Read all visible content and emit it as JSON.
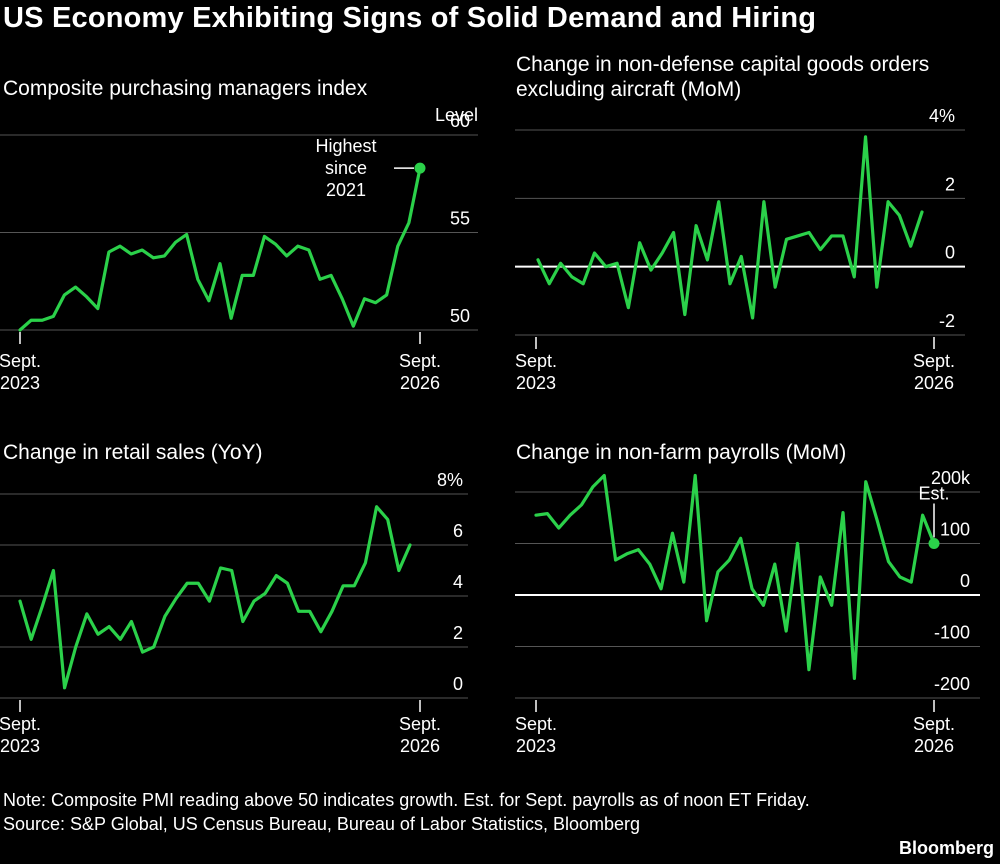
{
  "title": "US Economy Exhibiting Signs of Solid Demand and Hiring",
  "accent_color": "#2bd14a",
  "footer": {
    "note": "Note: Composite PMI reading above 50 indicates growth. Est. for Sept. payrolls as of noon ET Friday.",
    "source": "Source: S&P Global, US Census Bureau, Bureau of Labor Statistics, Bloomberg",
    "brand": "Bloomberg"
  },
  "chart_data": [
    {
      "type": "line",
      "title": "Composite purchasing managers index",
      "ylabel": "Level",
      "ylim": [
        50,
        60
      ],
      "yticks": [
        "60",
        "55",
        "50"
      ],
      "grid": true,
      "x_labels": [
        "Sept.\n2023",
        "Sept.\n2026"
      ],
      "annotation": "Highest\nsince\n2021",
      "series": [
        {
          "values": [
            50.0,
            50.5,
            50.5,
            50.7,
            51.8,
            52.2,
            51.7,
            51.1,
            54.0,
            54.3,
            53.9,
            54.1,
            53.7,
            53.8,
            54.5,
            54.9,
            52.6,
            51.5,
            53.4,
            50.6,
            52.8,
            52.8,
            54.8,
            54.4,
            53.8,
            54.3,
            54.1,
            52.6,
            52.8,
            51.6,
            50.2,
            51.6,
            51.4,
            51.8,
            54.3,
            55.5,
            58.3
          ]
        }
      ]
    },
    {
      "type": "line",
      "title": "Change in non-defense capital goods orders\nexcluding aircraft (MoM)",
      "ylim": [
        -2,
        4
      ],
      "yticks": [
        "4%",
        "2",
        "0",
        "-2"
      ],
      "grid": true,
      "x_labels": [
        "Sept.\n2023",
        "Sept.\n2026"
      ],
      "series": [
        {
          "values": [
            0.2,
            -0.5,
            0.1,
            -0.3,
            -0.5,
            0.4,
            0.0,
            0.1,
            -1.2,
            0.7,
            -0.1,
            0.4,
            1.0,
            -1.4,
            1.2,
            0.2,
            1.9,
            -0.5,
            0.3,
            -1.5,
            1.9,
            -0.6,
            0.8,
            0.9,
            1.0,
            0.5,
            0.9,
            0.9,
            -0.3,
            3.8,
            -0.6,
            1.9,
            1.5,
            0.6,
            1.6
          ]
        }
      ]
    },
    {
      "type": "line",
      "title": "Change in retail sales (YoY)",
      "ylim": [
        0,
        8
      ],
      "yticks": [
        "8%",
        "6",
        "4",
        "2",
        "0"
      ],
      "grid": true,
      "x_labels": [
        "Sept.\n2023",
        "Sept.\n2026"
      ],
      "series": [
        {
          "values": [
            3.8,
            2.3,
            3.6,
            5.0,
            0.4,
            2.0,
            3.3,
            2.5,
            2.8,
            2.3,
            3.0,
            1.8,
            2.0,
            3.2,
            3.9,
            4.5,
            4.5,
            3.8,
            5.1,
            5.0,
            3.0,
            3.8,
            4.1,
            4.8,
            4.5,
            3.4,
            3.4,
            2.6,
            3.4,
            4.4,
            4.4,
            5.3,
            7.5,
            7.0,
            5.0,
            6.0
          ]
        }
      ]
    },
    {
      "type": "line",
      "title": "Change in non-farm payrolls (MoM)",
      "ylim": [
        -200,
        200
      ],
      "yticks": [
        "200k",
        "100",
        "0",
        "-100",
        "-200"
      ],
      "grid": true,
      "x_labels": [
        "Sept.\n2023",
        "Sept.\n2026"
      ],
      "annotation": "Est.",
      "series": [
        {
          "values": [
            155,
            158,
            130,
            155,
            175,
            210,
            232,
            68,
            80,
            88,
            60,
            12,
            120,
            25,
            232,
            -50,
            45,
            68,
            110,
            12,
            -20,
            60,
            -70,
            100,
            -145,
            35,
            -20,
            160,
            -162,
            220,
            145,
            65,
            35,
            25,
            155,
            100
          ]
        }
      ]
    }
  ]
}
